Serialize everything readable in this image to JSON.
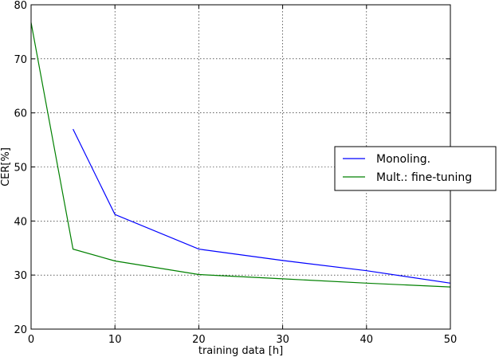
{
  "chart_data": {
    "type": "line",
    "title": "",
    "xlabel": "training data [h]",
    "ylabel": "CER[%]",
    "xlim": [
      0,
      50
    ],
    "ylim": [
      20,
      80
    ],
    "xticks": [
      0,
      10,
      20,
      30,
      40,
      50
    ],
    "yticks": [
      20,
      30,
      40,
      50,
      60,
      70,
      80
    ],
    "grid": true,
    "legend_position": "center-right",
    "series": [
      {
        "name": "Monoling.",
        "color": "#0000ff",
        "x": [
          5,
          10,
          20,
          30,
          40,
          50
        ],
        "y": [
          57,
          41.2,
          34.8,
          32.7,
          30.8,
          28.5
        ]
      },
      {
        "name": "Mult.: fine-tuning",
        "color": "#008000",
        "x": [
          0,
          5,
          10,
          20,
          30,
          40,
          50
        ],
        "y": [
          76.7,
          34.8,
          32.6,
          30.1,
          29.3,
          28.5,
          27.8
        ]
      }
    ]
  }
}
